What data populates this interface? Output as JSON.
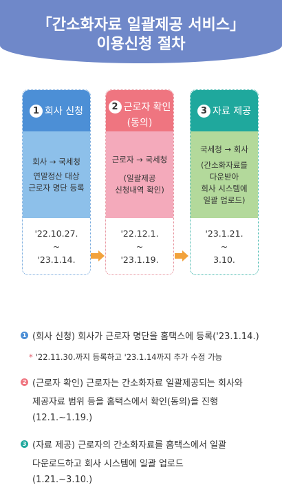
{
  "title": {
    "line1": "「간소화자료 일괄제공 서비스」",
    "line2": "이용신청 절차"
  },
  "colors": {
    "header": "#6f88c9",
    "step1": "#4c8fd6",
    "step2": "#ef7580",
    "step3": "#1fa89d",
    "arrow": "#f2a23c"
  },
  "steps": [
    {
      "number": "1",
      "title": "회사 신청",
      "title2": "",
      "body": [
        "회사 → 국세청",
        "연말정산 대상",
        "근로자 명단 등록"
      ],
      "date": [
        "'22.10.27.",
        "~",
        "'23.1.14."
      ]
    },
    {
      "number": "2",
      "title": "근로자 확인",
      "title2": "(동의)",
      "body": [
        "근로자 → 국세청",
        "",
        "(일괄제공",
        "신청내역 확인)"
      ],
      "date": [
        "'22.12.1.",
        "~",
        "'23.1.19."
      ]
    },
    {
      "number": "3",
      "title": "자료 제공",
      "title2": "",
      "body": [
        "국세청 → 회사",
        "",
        "(간소화자료를",
        "다운받아",
        "회사 시스템에",
        "일괄 업로드)"
      ],
      "date": [
        "'23.1.21.",
        "~",
        "3.10."
      ]
    }
  ],
  "notes": [
    {
      "number": "1",
      "lines": [
        "(회사 신청) 회사가 근로자 명단을 홈택스에 등록('23.1.14.)"
      ]
    },
    {
      "star": "*",
      "sub": "'22.11.30.까지 등록하고 '23.1.14까지 추가 수정 가능"
    },
    {
      "number": "2",
      "lines": [
        "(근로자 확인) 근로자는 간소화자료 일괄제공되는 회사와",
        "제공자료 범위 등을 홈택스에서 확인(동의)을 진행",
        "(12.1.~1.19.)"
      ]
    },
    {
      "number": "3",
      "lines": [
        "(자료 제공) 근로자의 간소화자료를 홈택스에서 일괄",
        "다운로드하고 회사 시스템에 일괄 업로드",
        "(1.21.~3.10.)"
      ]
    }
  ]
}
